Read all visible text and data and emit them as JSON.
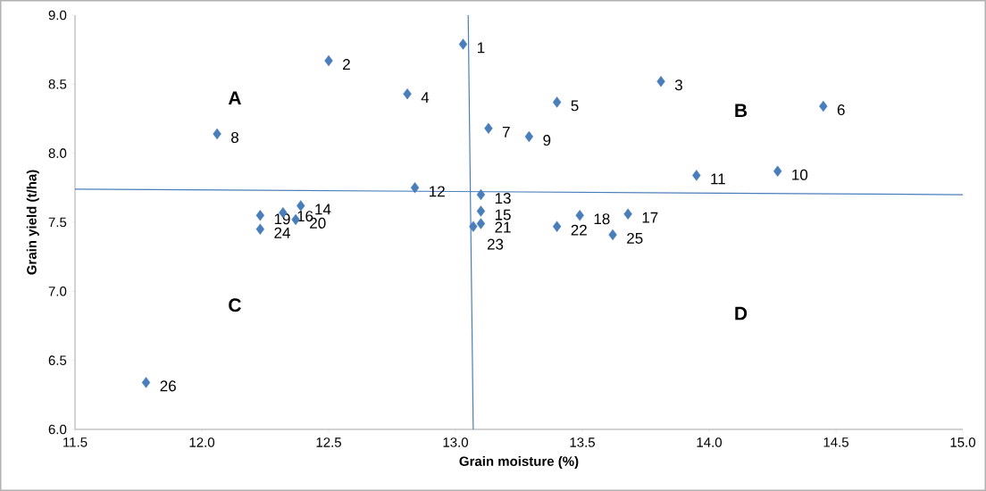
{
  "chart_data": {
    "type": "scatter",
    "xlabel": "Grain moisture (%)",
    "ylabel": "Grain yield (t/ha)",
    "xlim": [
      11.5,
      15.0
    ],
    "ylim": [
      6.0,
      9.0
    ],
    "xticks": [
      11.5,
      {
        "value": 12,
        "label": "12.0"
      },
      12.5,
      {
        "value": 13,
        "label": "13.0"
      },
      13.5,
      {
        "value": 14,
        "label": "14.0"
      },
      14.5,
      {
        "value": 15,
        "label": "15.0"
      }
    ],
    "yticks": [
      {
        "value": 6,
        "label": "6.0"
      },
      6.5,
      {
        "value": 7,
        "label": "7.0"
      },
      7.5,
      {
        "value": 8,
        "label": "8.0"
      },
      8.5,
      {
        "value": 9,
        "label": "9.0"
      }
    ],
    "series": [
      {
        "color": "#4a7ebb",
        "marker": "diamond",
        "x": [
          13.03,
          12.5,
          13.81,
          12.81,
          13.4,
          14.45,
          13.13,
          12.06,
          13.29,
          14.27,
          13.95,
          12.84,
          13.1,
          12.39,
          13.1,
          12.32,
          13.68,
          13.49,
          12.23,
          12.37,
          13.1,
          13.4,
          13.07,
          12.23,
          13.62,
          11.78
        ],
        "values": [
          8.79,
          8.67,
          8.52,
          8.43,
          8.37,
          8.34,
          8.18,
          8.14,
          8.12,
          7.87,
          7.84,
          7.75,
          7.7,
          7.62,
          7.58,
          7.57,
          7.56,
          7.55,
          7.55,
          7.52,
          7.49,
          7.47,
          7.47,
          7.45,
          7.41,
          6.34
        ]
      },
      {
        "type": "line",
        "color": "#4a7ebb",
        "x": [
          11.5,
          15.0
        ],
        "values": [
          7.74,
          7.7
        ]
      },
      {
        "type": "line",
        "color": "#4a7ebb",
        "x": [
          13.05,
          13.07
        ],
        "values": [
          9.0,
          6.0
        ]
      }
    ],
    "annotations": [
      "A",
      "B",
      "C",
      "D",
      {
        "text": "1",
        "x": 13.03,
        "y": 8.79
      },
      {
        "text": "2",
        "x": 12.5,
        "y": 8.67
      },
      {
        "text": "3",
        "x": 13.81,
        "y": 8.52
      },
      {
        "text": "4",
        "x": 12.81,
        "y": 8.43
      },
      {
        "text": "5",
        "x": 13.4,
        "y": 8.37
      },
      {
        "text": "6",
        "x": 14.45,
        "y": 8.34
      },
      {
        "text": "7",
        "x": 13.13,
        "y": 8.18
      },
      {
        "text": "8",
        "x": 12.06,
        "y": 8.14
      },
      {
        "text": "9",
        "x": 13.29,
        "y": 8.12
      },
      {
        "text": "10",
        "x": 14.27,
        "y": 7.87
      },
      {
        "text": "11",
        "x": 13.95,
        "y": 7.84
      },
      {
        "text": "12",
        "x": 12.84,
        "y": 7.75
      },
      {
        "text": "13",
        "x": 13.1,
        "y": 7.7
      },
      {
        "text": "14",
        "x": 12.39,
        "y": 7.62
      },
      {
        "text": "15",
        "x": 13.1,
        "y": 7.58
      },
      {
        "text": "16",
        "x": 12.32,
        "y": 7.57
      },
      {
        "text": "17",
        "x": 13.68,
        "y": 7.56
      },
      {
        "text": "18",
        "x": 13.49,
        "y": 7.55
      },
      {
        "text": "19",
        "x": 12.23,
        "y": 7.55
      },
      {
        "text": "20",
        "x": 12.37,
        "y": 7.52
      },
      {
        "text": "21",
        "x": 13.1,
        "y": 7.49
      },
      {
        "text": "22",
        "x": 13.4,
        "y": 7.47
      },
      {
        "text": "23",
        "x": 13.07,
        "y": 7.47
      },
      {
        "text": "24",
        "x": 12.23,
        "y": 7.45
      },
      {
        "text": "25",
        "x": 13.62,
        "y": 7.41
      },
      {
        "text": "26",
        "x": 11.78,
        "y": 6.34
      }
    ]
  }
}
